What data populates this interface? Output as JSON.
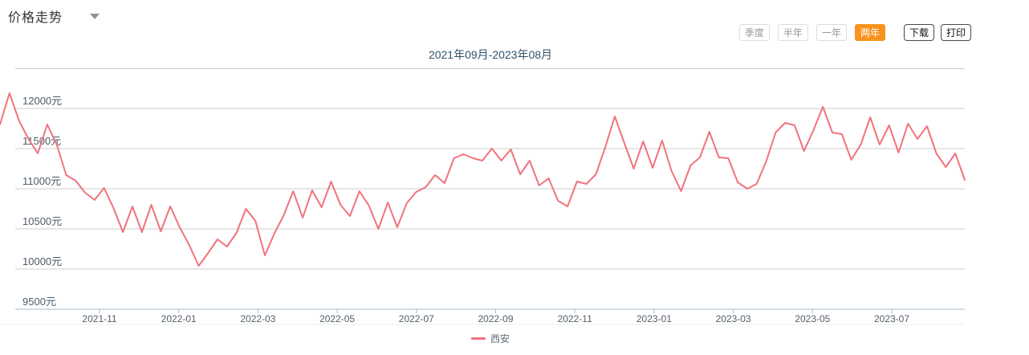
{
  "header": {
    "title": "价格走势"
  },
  "toolbar": {
    "active_color": "#f7931e",
    "period_buttons": [
      {
        "label": "季度",
        "active": false
      },
      {
        "label": "半年",
        "active": false
      },
      {
        "label": "一年",
        "active": false
      },
      {
        "label": "两年",
        "active": true
      }
    ],
    "action_buttons": [
      {
        "label": "下载"
      },
      {
        "label": "打印"
      }
    ]
  },
  "chart_data": {
    "type": "line",
    "title": "2021年09月-2023年08月",
    "x_start": "2021-09",
    "x_end": "2023-08",
    "x_tick_labels": [
      "2021-11",
      "2022-01",
      "2022-03",
      "2022-05",
      "2022-07",
      "2022-09",
      "2022-11",
      "2023-01",
      "2023-03",
      "2023-05",
      "2023-07"
    ],
    "y_tick_labels": [
      "12000元",
      "11500元",
      "11000元",
      "10500元",
      "10000元",
      "9500元"
    ],
    "y_tick_values": [
      12000,
      11500,
      11000,
      10500,
      10000,
      9500
    ],
    "ylim": [
      9500,
      12500
    ],
    "unit": "元",
    "grid": true,
    "legend_position": "bottom-center",
    "series": [
      {
        "name": "西安",
        "color": "#f0737d",
        "values": [
          11800,
          12190,
          11850,
          11620,
          11440,
          11800,
          11550,
          11170,
          11100,
          10950,
          10860,
          11010,
          10760,
          10460,
          10780,
          10460,
          10800,
          10470,
          10780,
          10520,
          10300,
          10040,
          10200,
          10370,
          10280,
          10450,
          10750,
          10600,
          10170,
          10440,
          10670,
          10970,
          10640,
          10980,
          10770,
          11090,
          10800,
          10660,
          10970,
          10790,
          10500,
          10830,
          10520,
          10820,
          10960,
          11020,
          11170,
          11070,
          11380,
          11430,
          11380,
          11350,
          11500,
          11350,
          11490,
          11180,
          11350,
          11040,
          11130,
          10850,
          10780,
          11090,
          11060,
          11180,
          11520,
          11900,
          11570,
          11250,
          11590,
          11260,
          11600,
          11220,
          10970,
          11290,
          11390,
          11710,
          11390,
          11380,
          11080,
          11000,
          11060,
          11340,
          11700,
          11820,
          11790,
          11470,
          11730,
          12020,
          11700,
          11680,
          11360,
          11550,
          11890,
          11550,
          11790,
          11450,
          11810,
          11620,
          11780,
          11440,
          11270,
          11440,
          11110
        ]
      }
    ]
  }
}
